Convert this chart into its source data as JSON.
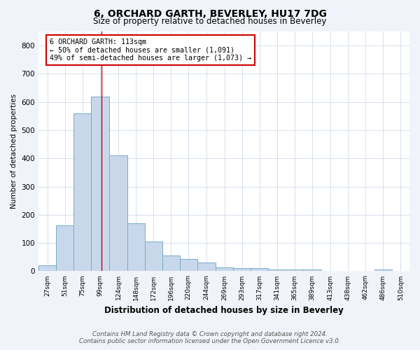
{
  "title": "6, ORCHARD GARTH, BEVERLEY, HU17 7DG",
  "subtitle": "Size of property relative to detached houses in Beverley",
  "xlabel": "Distribution of detached houses by size in Beverley",
  "ylabel": "Number of detached properties",
  "bin_labels": [
    "27sqm",
    "51sqm",
    "75sqm",
    "99sqm",
    "124sqm",
    "148sqm",
    "172sqm",
    "196sqm",
    "220sqm",
    "244sqm",
    "269sqm",
    "293sqm",
    "317sqm",
    "341sqm",
    "365sqm",
    "389sqm",
    "413sqm",
    "438sqm",
    "462sqm",
    "486sqm",
    "510sqm"
  ],
  "bin_edges": [
    27,
    51,
    75,
    99,
    124,
    148,
    172,
    196,
    220,
    244,
    269,
    293,
    317,
    341,
    365,
    389,
    413,
    438,
    462,
    486,
    510
  ],
  "bar_heights": [
    20,
    163,
    560,
    620,
    410,
    170,
    105,
    55,
    43,
    32,
    14,
    10,
    10,
    5,
    5,
    5,
    0,
    0,
    0,
    6,
    0
  ],
  "bar_color": "#c8d8ea",
  "bar_edge_color": "#7aaac8",
  "grid_color": "#d0daea",
  "property_sqm": 113,
  "red_line_color": "#cc0000",
  "annotation_title": "6 ORCHARD GARTH: 113sqm",
  "annotation_line1": "← 50% of detached houses are smaller (1,091)",
  "annotation_line2": "49% of semi-detached houses are larger (1,073) →",
  "annotation_box_color": "#ffffff",
  "annotation_box_edge": "#cc0000",
  "ylim": [
    0,
    850
  ],
  "yticks": [
    0,
    100,
    200,
    300,
    400,
    500,
    600,
    700,
    800
  ],
  "footer1": "Contains HM Land Registry data © Crown copyright and database right 2024.",
  "footer2": "Contains public sector information licensed under the Open Government Licence v3.0.",
  "plot_bg_color": "#ffffff",
  "fig_bg_color": "#f0f4fa"
}
